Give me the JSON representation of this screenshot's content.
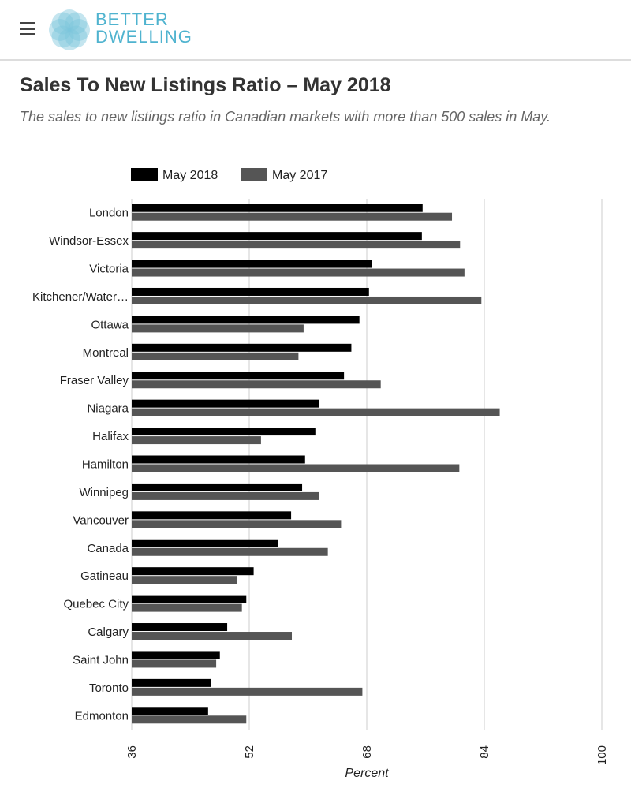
{
  "header": {
    "logo_line1": "BETTER",
    "logo_line2": "DWELLING",
    "menu_icon": "hamburger-icon"
  },
  "title": "Sales To New Listings Ratio – May 2018",
  "subtitle": "The sales to new listings ratio in Canadian markets with more than 500 sales in May.",
  "chart_data": {
    "type": "bar",
    "orientation": "horizontal",
    "categories": [
      "London",
      "Windsor-Essex",
      "Victoria",
      "Kitchener/Water…",
      "Ottawa",
      "Montreal",
      "Fraser Valley",
      "Niagara",
      "Halifax",
      "Hamilton",
      "Winnipeg",
      "Vancouver",
      "Canada",
      "Gatineau",
      "Quebec City",
      "Calgary",
      "Saint John",
      "Toronto",
      "Edmonton"
    ],
    "series": [
      {
        "name": "May 2018",
        "color": "#000000",
        "values": [
          75.6,
          75.5,
          68.7,
          68.3,
          67.0,
          65.9,
          64.9,
          61.5,
          61.0,
          59.6,
          59.2,
          57.7,
          55.9,
          52.6,
          51.6,
          49.0,
          48.0,
          46.8,
          46.4
        ]
      },
      {
        "name": "May 2017",
        "color": "#555555",
        "values": [
          79.6,
          80.7,
          81.3,
          83.6,
          59.4,
          58.7,
          69.9,
          86.1,
          53.6,
          80.6,
          61.5,
          64.5,
          62.7,
          50.3,
          51.0,
          57.8,
          47.5,
          67.4,
          51.6
        ]
      }
    ],
    "xlabel": "Percent",
    "xlim": [
      36,
      100
    ],
    "xticks": [
      "36",
      "52",
      "68",
      "84",
      "100"
    ],
    "legend": "top-left",
    "grid": true
  }
}
